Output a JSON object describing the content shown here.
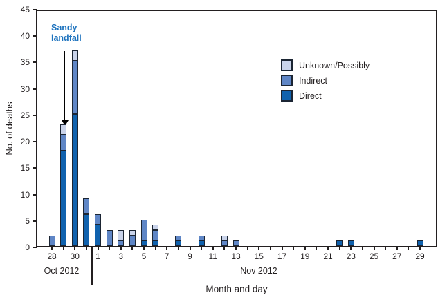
{
  "chart_data": {
    "type": "bar",
    "stacked": true,
    "xlabel": "Month and day",
    "ylabel": "No. of deaths",
    "ylim": [
      0,
      45
    ],
    "yticks": [
      0,
      5,
      10,
      15,
      20,
      25,
      30,
      35,
      40,
      45
    ],
    "grid": false,
    "frame": "full box",
    "axis_color": "#231f20",
    "bar_outline_color": "#1b2533",
    "legend": {
      "position": "upper right inside plot",
      "entries": [
        {
          "key": "unknown",
          "label": "Unknown/Possibly",
          "color": "#c9d3ea"
        },
        {
          "key": "indirect",
          "label": "Indirect",
          "color": "#5f86c6"
        },
        {
          "key": "direct",
          "label": "Direct",
          "color": "#1062ae"
        }
      ]
    },
    "annotation": {
      "lines": [
        "Sandy",
        "landfall"
      ],
      "color": "#1e73be",
      "target_day": "Oct 29",
      "arrow": "black, pointing down to top of Oct 29 bar"
    },
    "months": [
      {
        "label": "Oct 2012"
      },
      {
        "label": "Nov 2012"
      }
    ],
    "series_order": [
      "direct",
      "indirect",
      "unknown"
    ],
    "days": [
      {
        "month": "Oct",
        "day": 28,
        "direct": 0,
        "indirect": 2,
        "unknown": 0
      },
      {
        "month": "Oct",
        "day": 29,
        "direct": 18,
        "indirect": 3,
        "unknown": 2
      },
      {
        "month": "Oct",
        "day": 30,
        "direct": 25,
        "indirect": 10,
        "unknown": 2
      },
      {
        "month": "Oct",
        "day": 31,
        "direct": 6,
        "indirect": 3,
        "unknown": 0
      },
      {
        "month": "Nov",
        "day": 1,
        "direct": 4,
        "indirect": 2,
        "unknown": 0
      },
      {
        "month": "Nov",
        "day": 2,
        "direct": 0,
        "indirect": 3,
        "unknown": 0
      },
      {
        "month": "Nov",
        "day": 3,
        "direct": 0,
        "indirect": 1,
        "unknown": 2
      },
      {
        "month": "Nov",
        "day": 4,
        "direct": 0,
        "indirect": 2,
        "unknown": 1
      },
      {
        "month": "Nov",
        "day": 5,
        "direct": 1,
        "indirect": 4,
        "unknown": 0
      },
      {
        "month": "Nov",
        "day": 6,
        "direct": 1,
        "indirect": 2,
        "unknown": 1
      },
      {
        "month": "Nov",
        "day": 7,
        "direct": 0,
        "indirect": 0,
        "unknown": 0
      },
      {
        "month": "Nov",
        "day": 8,
        "direct": 1,
        "indirect": 1,
        "unknown": 0
      },
      {
        "month": "Nov",
        "day": 9,
        "direct": 0,
        "indirect": 0,
        "unknown": 0
      },
      {
        "month": "Nov",
        "day": 10,
        "direct": 1,
        "indirect": 1,
        "unknown": 0
      },
      {
        "month": "Nov",
        "day": 11,
        "direct": 0,
        "indirect": 0,
        "unknown": 0
      },
      {
        "month": "Nov",
        "day": 12,
        "direct": 0,
        "indirect": 1,
        "unknown": 1
      },
      {
        "month": "Nov",
        "day": 13,
        "direct": 0,
        "indirect": 1,
        "unknown": 0
      },
      {
        "month": "Nov",
        "day": 14,
        "direct": 0,
        "indirect": 0,
        "unknown": 0
      },
      {
        "month": "Nov",
        "day": 15,
        "direct": 0,
        "indirect": 0,
        "unknown": 0
      },
      {
        "month": "Nov",
        "day": 16,
        "direct": 0,
        "indirect": 0,
        "unknown": 0
      },
      {
        "month": "Nov",
        "day": 17,
        "direct": 0,
        "indirect": 0,
        "unknown": 0
      },
      {
        "month": "Nov",
        "day": 18,
        "direct": 0,
        "indirect": 0,
        "unknown": 0
      },
      {
        "month": "Nov",
        "day": 19,
        "direct": 0,
        "indirect": 0,
        "unknown": 0
      },
      {
        "month": "Nov",
        "day": 20,
        "direct": 0,
        "indirect": 0,
        "unknown": 0
      },
      {
        "month": "Nov",
        "day": 21,
        "direct": 0,
        "indirect": 0,
        "unknown": 0
      },
      {
        "month": "Nov",
        "day": 22,
        "direct": 1,
        "indirect": 0,
        "unknown": 0
      },
      {
        "month": "Nov",
        "day": 23,
        "direct": 1,
        "indirect": 0,
        "unknown": 0
      },
      {
        "month": "Nov",
        "day": 24,
        "direct": 0,
        "indirect": 0,
        "unknown": 0
      },
      {
        "month": "Nov",
        "day": 25,
        "direct": 0,
        "indirect": 0,
        "unknown": 0
      },
      {
        "month": "Nov",
        "day": 26,
        "direct": 0,
        "indirect": 0,
        "unknown": 0
      },
      {
        "month": "Nov",
        "day": 27,
        "direct": 0,
        "indirect": 0,
        "unknown": 0
      },
      {
        "month": "Nov",
        "day": 28,
        "direct": 0,
        "indirect": 0,
        "unknown": 0
      },
      {
        "month": "Nov",
        "day": 29,
        "direct": 1,
        "indirect": 0,
        "unknown": 0
      }
    ]
  }
}
